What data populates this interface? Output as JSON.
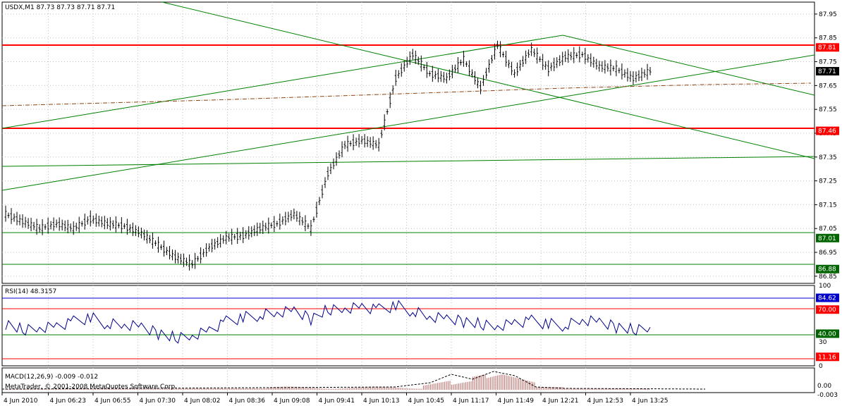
{
  "colors": {
    "background": "#ffffff",
    "frame": "#000000",
    "grid": "#c0c0c0",
    "bars": "#000000",
    "support_resistance": "#ff0000",
    "trendline": "#008000",
    "moving_average": "#8b4513",
    "rsi_line": "#00008b",
    "macd_hist": "#c08080",
    "macd_signal": "#000000",
    "tag_red": "#ff0000",
    "tag_green": "#006400",
    "tag_blue": "#0000cd",
    "tag_black": "#000000"
  },
  "main_chart": {
    "header": "USDX,M1  87.73 87.73 87.71 87.71",
    "price_axis_labels": [
      "87.95",
      "87.85",
      "87.75",
      "87.65",
      "87.55",
      "87.45",
      "87.35",
      "87.25",
      "87.15",
      "87.05",
      "86.95",
      "86.85"
    ],
    "price_range": [
      86.82,
      88.0
    ],
    "tags": [
      {
        "value": "87.81",
        "color": "red"
      },
      {
        "value": "87.71",
        "color": "black"
      },
      {
        "value": "87.46",
        "color": "red"
      },
      {
        "value": "87.01",
        "color": "green"
      },
      {
        "value": "86.88",
        "color": "green"
      }
    ]
  },
  "rsi_panel": {
    "header": "RSI(14) 48.3157",
    "axis_labels": [
      "100",
      "30",
      "0"
    ],
    "tags": [
      {
        "value": "84.62",
        "color": "blue"
      },
      {
        "value": "70.00",
        "color": "red"
      },
      {
        "value": "40.00",
        "color": "green"
      },
      {
        "value": "11.16",
        "color": "red"
      }
    ]
  },
  "macd_panel": {
    "header": "MACD(12,26,9) -0.009 -0.012",
    "watermark": "MetaTrader, © 2001-2008 MetaQuotes Software Corp.",
    "axis_labels": [
      "0.00",
      "-0.003"
    ]
  },
  "time_axis": {
    "labels": [
      "4 Jun 2010",
      "4 Jun 06:23",
      "4 Jun 06:55",
      "4 Jun 07:30",
      "4 Jun 08:02",
      "4 Jun 08:36",
      "4 Jun 09:08",
      "4 Jun 09:41",
      "4 Jun 10:13",
      "4 Jun 10:45",
      "4 Jun 11:17",
      "4 Jun 11:49",
      "4 Jun 12:21",
      "4 Jun 12:53",
      "4 Jun 13:25"
    ]
  },
  "chart_data": {
    "type": "line",
    "symbol": "USDX",
    "timeframe": "M1",
    "x": [
      "06:00",
      "06:16",
      "06:32",
      "06:48",
      "07:04",
      "07:20",
      "07:36",
      "07:52",
      "08:08",
      "08:24",
      "08:40",
      "08:56",
      "09:12",
      "09:28",
      "09:44",
      "10:00",
      "10:16",
      "10:32",
      "10:48",
      "10:56",
      "11:04",
      "11:12",
      "11:20",
      "11:28",
      "11:36",
      "11:44",
      "11:52",
      "12:00",
      "12:08",
      "12:16",
      "12:24",
      "12:32",
      "12:40",
      "12:48",
      "12:56",
      "13:04",
      "13:12",
      "13:20",
      "13:28"
    ],
    "series": [
      {
        "name": "USDX",
        "values": [
          87.11,
          87.08,
          87.05,
          87.07,
          87.05,
          87.09,
          87.07,
          87.06,
          87.03,
          86.98,
          86.93,
          86.9,
          86.97,
          87.01,
          87.02,
          87.05,
          87.07,
          87.11,
          87.05,
          87.28,
          87.4,
          87.42,
          87.4,
          87.68,
          87.78,
          87.7,
          87.68,
          87.76,
          87.64,
          87.82,
          87.7,
          87.8,
          87.72,
          87.77,
          87.78,
          87.73,
          87.72,
          87.68,
          87.71
        ]
      }
    ],
    "rsi_values": [
      52,
      45,
      48,
      50,
      55,
      60,
      52,
      50,
      48,
      40,
      35,
      38,
      45,
      55,
      60,
      63,
      65,
      68,
      58,
      70,
      72,
      74,
      70,
      75,
      68,
      60,
      58,
      55,
      52,
      50,
      54,
      56,
      52,
      50,
      56,
      54,
      48,
      45,
      48
    ],
    "horizontal_levels": [
      87.81,
      87.46,
      87.01,
      86.88
    ],
    "rsi_levels": [
      84.62,
      70.0,
      40.0,
      11.16
    ]
  }
}
